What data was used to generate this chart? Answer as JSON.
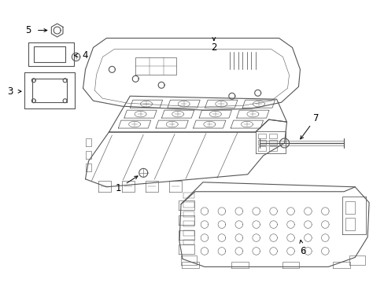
{
  "background_color": "#ffffff",
  "line_color": "#555555",
  "label_color": "#000000",
  "fig_width": 4.89,
  "fig_height": 3.6,
  "dpi": 100,
  "lw": 0.8
}
